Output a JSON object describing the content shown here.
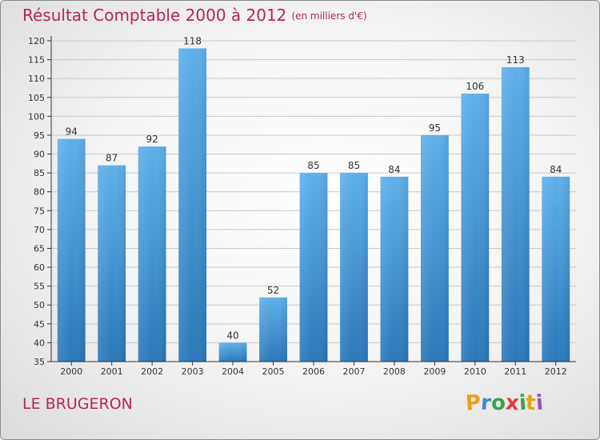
{
  "chart_data": {
    "type": "bar",
    "title": "Résultat Comptable 2000 à 2012",
    "subtitle": "(en milliers d'€)",
    "categories": [
      "2000",
      "2001",
      "2002",
      "2003",
      "2004",
      "2005",
      "2006",
      "2007",
      "2008",
      "2009",
      "2010",
      "2011",
      "2012"
    ],
    "values": [
      94,
      87,
      92,
      118,
      40,
      52,
      85,
      85,
      84,
      95,
      106,
      113,
      84
    ],
    "ylim": [
      35,
      120
    ],
    "ytick_step": 5,
    "xlabel": "",
    "ylabel": "",
    "grid": true,
    "bar_color_top": "#5eb0ea",
    "bar_color_bottom": "#2a78b9"
  },
  "footer": {
    "place_name": "LE BRUGERON"
  },
  "logo": {
    "letters": [
      "P",
      "r",
      "o",
      "x",
      "i",
      "t",
      "i"
    ],
    "colors": [
      "#e8a21a",
      "#3a8fd0",
      "#3aa44a",
      "#e23b3b",
      "#3aa44a",
      "#e8a21a",
      "#9b4fc2"
    ]
  },
  "colors": {
    "title": "#b5245a",
    "grid": "#c8c8c8",
    "axis": "#333333"
  }
}
